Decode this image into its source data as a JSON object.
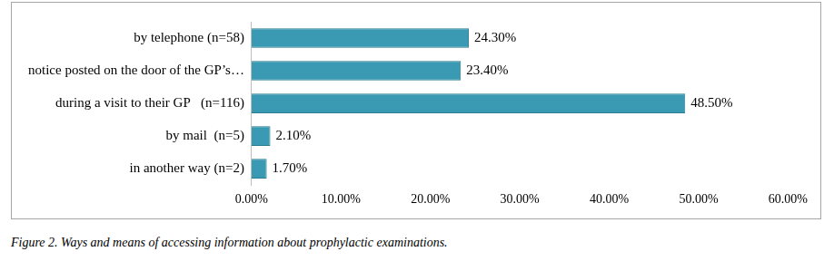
{
  "chart_data": {
    "type": "bar",
    "orientation": "horizontal",
    "title": "Figure 2. Ways and means of accessing information about prophylactic examinations.",
    "categories": [
      "by telephone (n=58)",
      "notice posted on the door of the GP’s…",
      "during a visit to their GP   (n=116)",
      "by mail  (n=5)",
      "in another way (n=2)"
    ],
    "values": [
      24.3,
      23.4,
      48.5,
      2.1,
      1.7
    ],
    "value_labels": [
      "24.30%",
      "23.40%",
      "48.50%",
      "2.10%",
      "1.70%"
    ],
    "data_labels": true,
    "color": "#3a9ab3",
    "xlim": [
      0,
      60
    ],
    "xticks": [
      {
        "value": 0,
        "label": "0.00%"
      },
      {
        "value": 10,
        "label": "10.00%"
      },
      {
        "value": 20,
        "label": "20.00%"
      },
      {
        "value": 30,
        "label": "30.00%"
      },
      {
        "value": 40,
        "label": "40.00%"
      },
      {
        "value": 50,
        "label": "50.00%"
      },
      {
        "value": 60,
        "label": "60.00%"
      }
    ],
    "grid": false
  }
}
